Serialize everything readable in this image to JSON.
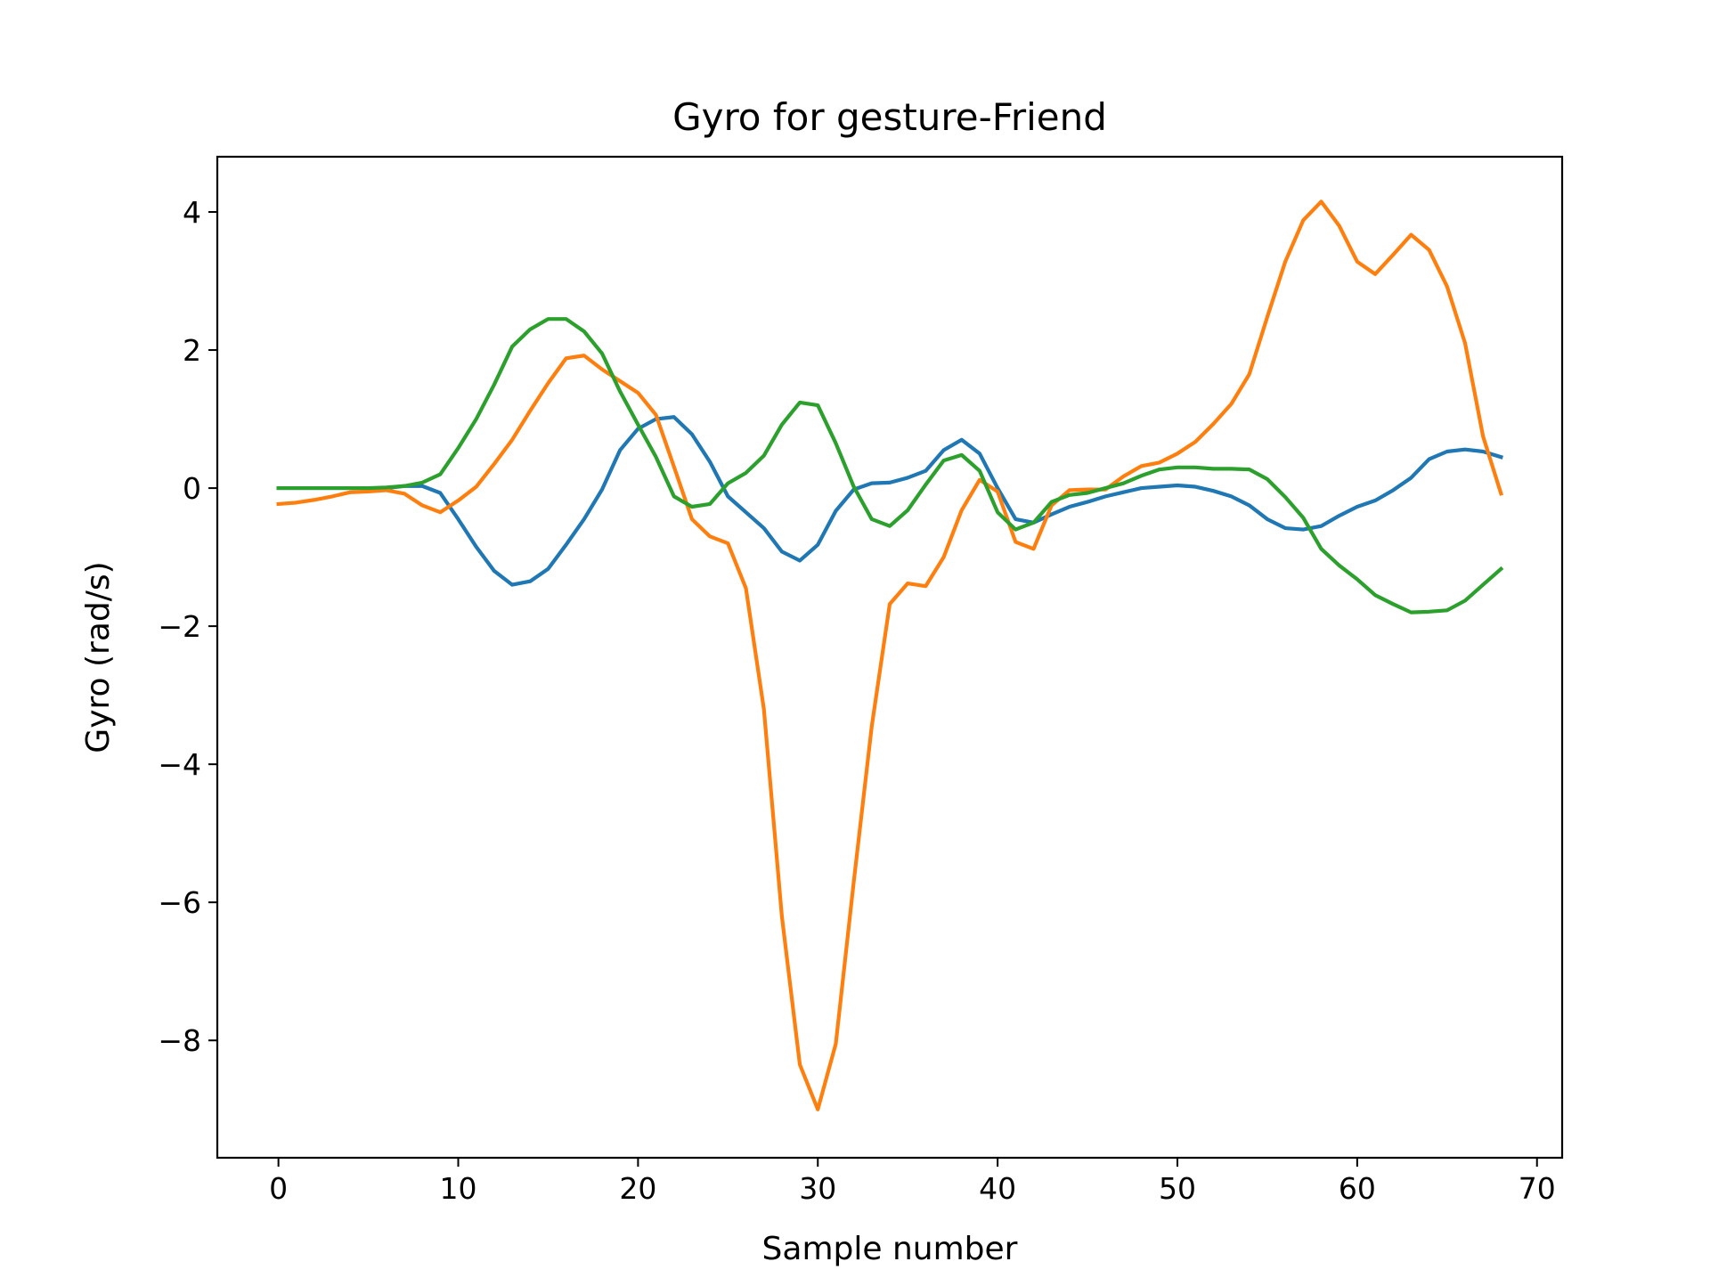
{
  "chart_data": {
    "type": "line",
    "title": "Gyro for gesture-Friend",
    "xlabel": "Sample number",
    "ylabel": "Gyro  (rad/s)",
    "xlim": [
      -3.4,
      71.4
    ],
    "ylim": [
      -9.7,
      4.8
    ],
    "xticks": [
      0,
      10,
      20,
      30,
      40,
      50,
      60,
      70
    ],
    "yticks": [
      -8,
      -6,
      -4,
      -2,
      0,
      2,
      4
    ],
    "xtick_labels": [
      "0",
      "10",
      "20",
      "30",
      "40",
      "50",
      "60",
      "70"
    ],
    "ytick_labels": [
      "−8",
      "−6",
      "−4",
      "−2",
      "0",
      "2",
      "4"
    ],
    "grid": false,
    "legend": "none",
    "x": [
      0,
      1,
      2,
      3,
      4,
      5,
      6,
      7,
      8,
      9,
      10,
      11,
      12,
      13,
      14,
      15,
      16,
      17,
      18,
      19,
      20,
      21,
      22,
      23,
      24,
      25,
      26,
      27,
      28,
      29,
      30,
      31,
      32,
      33,
      34,
      35,
      36,
      37,
      38,
      39,
      40,
      41,
      42,
      43,
      44,
      45,
      46,
      47,
      48,
      49,
      50,
      51,
      52,
      53,
      54,
      55,
      56,
      57,
      58,
      59,
      60,
      61,
      62,
      63,
      64,
      65,
      66,
      67,
      68
    ],
    "series": [
      {
        "color": "#1f77b4",
        "values": [
          0.0,
          0.0,
          0.0,
          0.0,
          0.0,
          0.0,
          0.0,
          0.03,
          0.03,
          -0.07,
          -0.45,
          -0.85,
          -1.2,
          -1.4,
          -1.35,
          -1.17,
          -0.82,
          -0.45,
          -0.02,
          0.55,
          0.86,
          1.0,
          1.03,
          0.78,
          0.38,
          -0.12,
          -0.35,
          -0.58,
          -0.92,
          -1.05,
          -0.82,
          -0.33,
          -0.02,
          0.07,
          0.08,
          0.15,
          0.25,
          0.55,
          0.7,
          0.5,
          0.0,
          -0.45,
          -0.5,
          -0.38,
          -0.27,
          -0.2,
          -0.12,
          -0.06,
          0.0,
          0.02,
          0.04,
          0.02,
          -0.04,
          -0.12,
          -0.25,
          -0.45,
          -0.58,
          -0.6,
          -0.55,
          -0.4,
          -0.27,
          -0.18,
          -0.03,
          0.15,
          0.42,
          0.53,
          0.56,
          0.53,
          0.45
        ]
      },
      {
        "color": "#ff7f0e",
        "values": [
          -0.23,
          -0.21,
          -0.17,
          -0.12,
          -0.06,
          -0.05,
          -0.03,
          -0.08,
          -0.25,
          -0.35,
          -0.18,
          0.02,
          0.35,
          0.7,
          1.12,
          1.52,
          1.88,
          1.92,
          1.72,
          1.55,
          1.38,
          1.06,
          0.31,
          -0.45,
          -0.7,
          -0.8,
          -1.45,
          -3.2,
          -6.2,
          -8.35,
          -9.0,
          -8.05,
          -5.7,
          -3.45,
          -1.68,
          -1.38,
          -1.42,
          -1.0,
          -0.32,
          0.12,
          -0.05,
          -0.78,
          -0.88,
          -0.25,
          -0.03,
          -0.02,
          -0.02,
          0.17,
          0.32,
          0.37,
          0.5,
          0.67,
          0.93,
          1.22,
          1.65,
          2.48,
          3.28,
          3.88,
          4.15,
          3.8,
          3.28,
          3.1,
          3.38,
          3.67,
          3.45,
          2.92,
          2.1,
          0.75,
          -0.08
        ]
      },
      {
        "color": "#2ca02c",
        "values": [
          0.0,
          0.0,
          0.0,
          0.0,
          0.0,
          0.0,
          0.01,
          0.03,
          0.08,
          0.2,
          0.58,
          1.0,
          1.5,
          2.05,
          2.3,
          2.45,
          2.45,
          2.27,
          1.95,
          1.4,
          0.92,
          0.45,
          -0.12,
          -0.27,
          -0.23,
          0.07,
          0.22,
          0.47,
          0.92,
          1.24,
          1.2,
          0.65,
          0.02,
          -0.45,
          -0.55,
          -0.32,
          0.05,
          0.4,
          0.48,
          0.25,
          -0.35,
          -0.6,
          -0.5,
          -0.2,
          -0.1,
          -0.07,
          0.0,
          0.07,
          0.18,
          0.27,
          0.3,
          0.3,
          0.28,
          0.28,
          0.27,
          0.13,
          -0.13,
          -0.43,
          -0.88,
          -1.12,
          -1.32,
          -1.55,
          -1.68,
          -1.8,
          -1.79,
          -1.77,
          -1.63,
          -1.4,
          -1.17
        ]
      }
    ]
  }
}
